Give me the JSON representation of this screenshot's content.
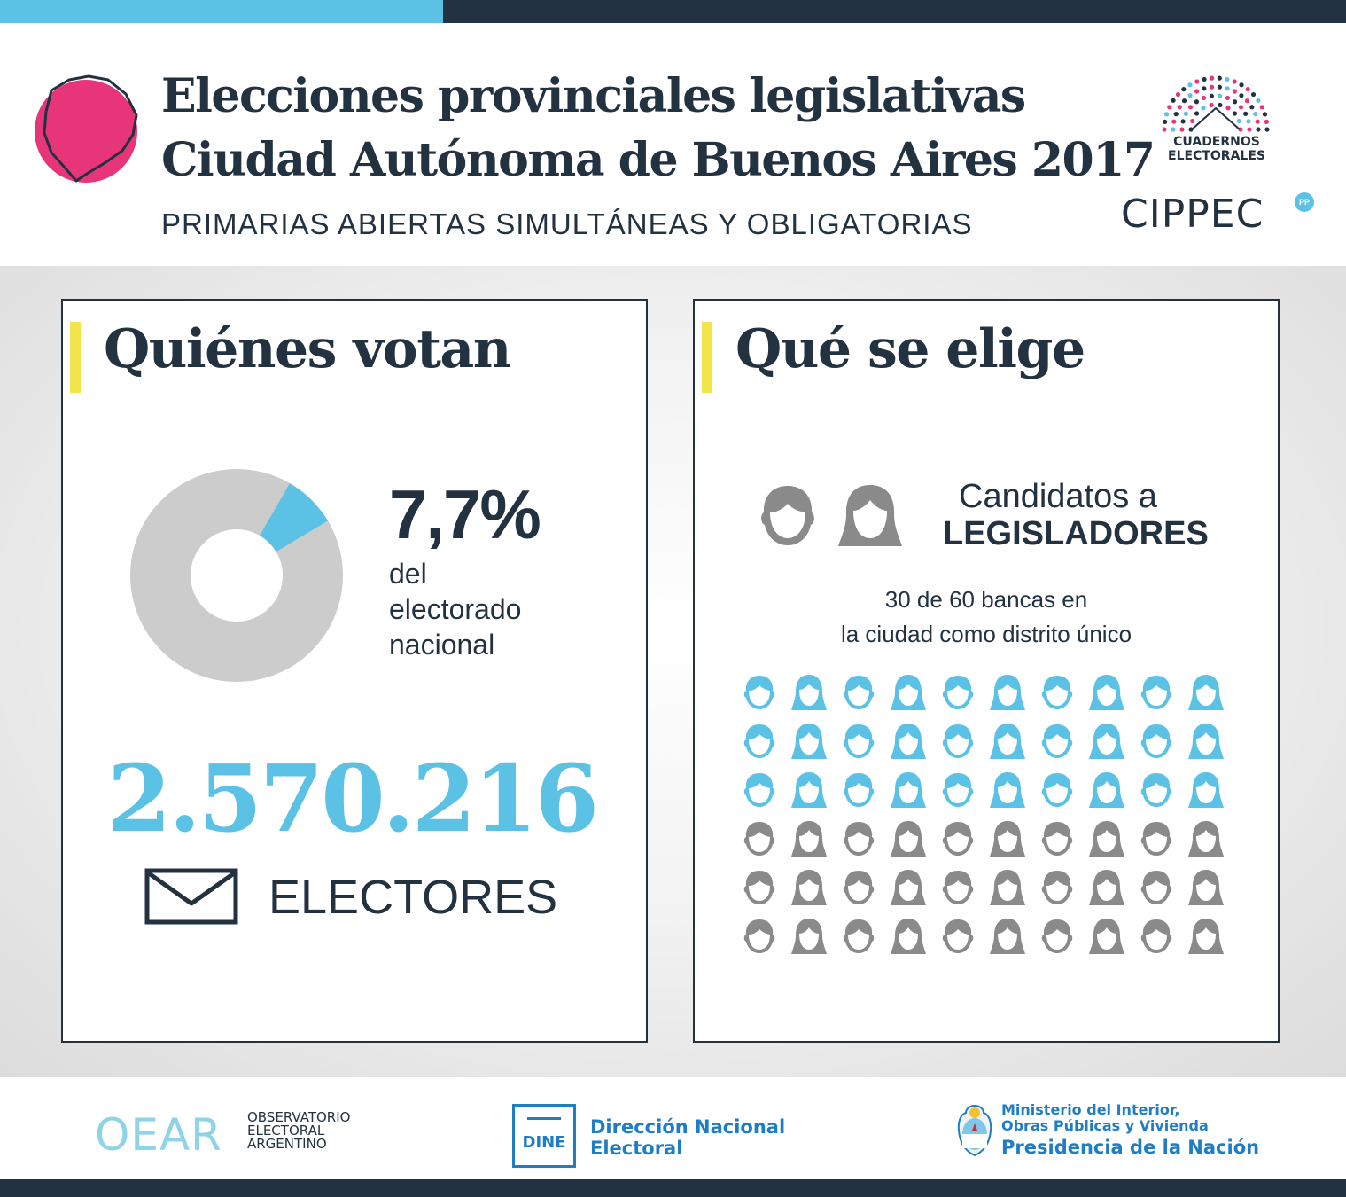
{
  "header": {
    "title_line1": "Elecciones provinciales legislativas",
    "title_line2": "Ciudad Autónoma de Buenos Aires 2017",
    "subtitle": "PRIMARIAS ABIERTAS SIMULTÁNEAS Y OBLIGATORIAS",
    "cuadernos_line1": "CUADERNOS",
    "cuadernos_line2": "ELECTORALES",
    "cippec": "CIPPEC",
    "cippec_badge": "PP"
  },
  "colors": {
    "navy": "#233241",
    "blue": "#5bc2e6",
    "pink": "#e8357a",
    "yellow": "#f2e44a",
    "gray": "#cccccc",
    "seat_gray": "#8a8a8a",
    "gov_blue": "#1e7dc3"
  },
  "quienes": {
    "title": "Quiénes votan",
    "percent_text": "7,7%",
    "percent_value": 7.7,
    "desc": [
      "del",
      "electorado",
      "nacional"
    ],
    "electores_count": "2.570.216",
    "electores_label": "ELECTORES",
    "icon": "envelope-icon"
  },
  "que": {
    "title": "Qué se elige",
    "cand_line1": "Candidatos a",
    "cand_line2": "LEGISLADORES",
    "bancas": [
      "30 de 60 bancas en",
      "la ciudad como distrito único"
    ],
    "seats_total": 60,
    "seats_elected": 30,
    "seats_per_row": 10
  },
  "footer": {
    "oear_mark": "OEAR",
    "oear_lines": [
      "OBSERVATORIO",
      "ELECTORAL",
      "ARGENTINO"
    ],
    "dine_label": "DINE",
    "dine_lines": [
      "Dirección Nacional",
      "Electoral"
    ],
    "ministerio_lines": [
      "Ministerio del Interior,",
      "Obras Públicas y Vivienda"
    ],
    "presidencia": "Presidencia de la Nación"
  }
}
